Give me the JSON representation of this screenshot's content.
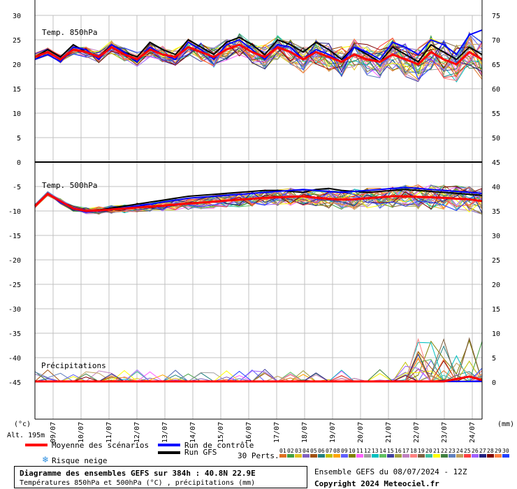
{
  "chart_data": {
    "type": "line",
    "x": [
      "09/07",
      "10/07",
      "11/07",
      "12/07",
      "13/07",
      "14/07",
      "15/07",
      "16/07",
      "17/07",
      "18/07",
      "19/07",
      "20/07",
      "21/07",
      "22/07",
      "23/07",
      "24/07"
    ],
    "left_axis": {
      "unit": "(°c)",
      "ticks": [
        "30",
        "25",
        "20",
        "15",
        "10",
        "5",
        "0",
        "-5",
        "-10",
        "-15",
        "-20",
        "-25",
        "-30",
        "-35",
        "-40",
        "-45"
      ],
      "altitude": "Alt. 195m"
    },
    "right_axis": {
      "unit": "(mm)",
      "upper_ticks": [
        "75",
        "70",
        "65",
        "60",
        "55",
        "50"
      ],
      "lower_ticks": [
        "45",
        "40",
        "35",
        "30",
        "25",
        "20",
        "15",
        "10",
        "5",
        "0"
      ]
    },
    "panels": [
      {
        "label": "Temp. 850hPa",
        "ylim": [
          0,
          30
        ]
      },
      {
        "label": "Temp. 500hPa",
        "ylim": [
          -45,
          0
        ]
      },
      {
        "label": "Précipitations",
        "ylim": [
          0,
          15
        ]
      }
    ],
    "series": [
      {
        "name": "Moyenne des scénarios",
        "color": "#ff0000",
        "t850": [
          21.5,
          22.5,
          21.0,
          23.0,
          22.5,
          21.5,
          23.5,
          22.0,
          21.0,
          23.0,
          22.0,
          21.5,
          23.5,
          22.5,
          21.5,
          23.0,
          24.0,
          22.5,
          21.5,
          23.5,
          22.5,
          21.0,
          22.5,
          21.5,
          20.5,
          22.0,
          21.0,
          20.5,
          22.0,
          21.0,
          20.0,
          22.5,
          21.0,
          20.0,
          22.5,
          21.0
        ],
        "t500": [
          -9.0,
          -6.5,
          -8.0,
          -9.5,
          -10.0,
          -9.9,
          -9.7,
          -9.5,
          -9.3,
          -9.1,
          -8.9,
          -8.7,
          -8.5,
          -8.3,
          -8.1,
          -7.9,
          -7.7,
          -7.5,
          -7.3,
          -7.2,
          -7.1,
          -7.0,
          -7.3,
          -7.5,
          -7.7,
          -7.6,
          -7.4,
          -7.2,
          -7.0,
          -7.0,
          -7.1,
          -7.2,
          -7.3,
          -7.5,
          -7.6,
          -8.0
        ],
        "precip": [
          0,
          0,
          0,
          0,
          0,
          0,
          0,
          0,
          0,
          0,
          0,
          0,
          0,
          0,
          0,
          0,
          0,
          0,
          0,
          0,
          0,
          0,
          0,
          0,
          0,
          0,
          0,
          0,
          0,
          0,
          0,
          0,
          0,
          0.5,
          1.0,
          0.3
        ]
      },
      {
        "name": "Run de contrôle",
        "color": "#0000ff",
        "t850": [
          21.0,
          22.0,
          20.5,
          23.5,
          23.0,
          21.0,
          24.0,
          22.5,
          20.5,
          23.5,
          22.0,
          21.0,
          24.5,
          23.0,
          21.0,
          24.0,
          25.0,
          23.0,
          21.0,
          24.0,
          23.5,
          21.0,
          23.0,
          22.0,
          20.5,
          23.5,
          22.5,
          21.0,
          24.5,
          23.5,
          22.0,
          25.0,
          24.0,
          22.0,
          26.0,
          27.0
        ],
        "t500": [
          -9.0,
          -6.5,
          -8.2,
          -9.6,
          -10.2,
          -10.0,
          -9.6,
          -9.4,
          -9.0,
          -8.6,
          -8.2,
          -7.8,
          -7.4,
          -7.2,
          -7.0,
          -6.8,
          -6.6,
          -6.4,
          -6.2,
          -6.0,
          -5.8,
          -5.6,
          -5.8,
          -6.0,
          -6.2,
          -6.0,
          -5.8,
          -5.6,
          -5.4,
          -5.2,
          -5.4,
          -5.6,
          -5.8,
          -6.0,
          -6.2,
          -6.4
        ],
        "precip": [
          0,
          0,
          0,
          0,
          0,
          0,
          0,
          0,
          0,
          0,
          0,
          0,
          0,
          0,
          0,
          0,
          0,
          0,
          0,
          0,
          0,
          0,
          0,
          0,
          0,
          0,
          0,
          0,
          0,
          0,
          0,
          0,
          0,
          0,
          0,
          0
        ]
      },
      {
        "name": "Run GFS",
        "color": "#000000",
        "t850": [
          21.5,
          23.0,
          21.5,
          24.0,
          22.5,
          21.5,
          24.0,
          22.5,
          21.5,
          24.5,
          23.0,
          22.0,
          25.0,
          23.5,
          22.0,
          24.5,
          25.5,
          24.0,
          22.0,
          25.0,
          24.0,
          22.5,
          24.5,
          23.0,
          21.0,
          23.5,
          22.0,
          20.5,
          23.5,
          22.0,
          20.5,
          24.0,
          22.5,
          21.0,
          23.5,
          22.0
        ],
        "t500": [
          -9.0,
          -6.5,
          -8.0,
          -9.4,
          -10.0,
          -9.8,
          -9.4,
          -9.0,
          -8.6,
          -8.2,
          -7.8,
          -7.4,
          -7.0,
          -6.8,
          -6.6,
          -6.4,
          -6.2,
          -6.0,
          -5.8,
          -5.8,
          -6.0,
          -6.2,
          -5.6,
          -5.4,
          -5.8,
          -6.0,
          -6.2,
          -6.0,
          -5.8,
          -5.6,
          -5.8,
          -6.0,
          -6.2,
          -6.4,
          -6.6,
          -6.8
        ],
        "precip": [
          0,
          0,
          0,
          0,
          0,
          0,
          0,
          0,
          0,
          0,
          0,
          0,
          0,
          0,
          0,
          0,
          0,
          0,
          0,
          0,
          0,
          0,
          0,
          0,
          0,
          0,
          0,
          0,
          0,
          0,
          0,
          0,
          0,
          0,
          0,
          0
        ]
      }
    ]
  },
  "legend": {
    "mean": "Moyenne des scénarios",
    "control": "Run de contrôle",
    "gfs": "Run GFS",
    "snow": "Risque neige",
    "perts": "30 Perts.",
    "pert_numbers": [
      "01",
      "02",
      "03",
      "04",
      "05",
      "06",
      "07",
      "08",
      "09",
      "10",
      "11",
      "12",
      "13",
      "14",
      "15",
      "16",
      "17",
      "18",
      "19",
      "20",
      "21",
      "22",
      "23",
      "24",
      "25",
      "26",
      "27",
      "28",
      "29",
      "30"
    ],
    "pert_colors": [
      "#e07020",
      "#40a040",
      "#e0c020",
      "#8060c0",
      "#a05010",
      "#208080",
      "#c0c000",
      "#ffa500",
      "#6060ff",
      "#808000",
      "#ff60ff",
      "#a0a0a0",
      "#00c0c0",
      "#60c060",
      "#4040a0",
      "#a0a040",
      "#c080c0",
      "#ff8080",
      "#806040",
      "#40c0a0",
      "#ffff00",
      "#408040",
      "#6080c0",
      "#c0a060",
      "#ff4040",
      "#a060ff",
      "#202080",
      "#800000",
      "#ff8040",
      "#2040ff"
    ]
  },
  "footer": {
    "title": "Diagramme des ensembles GEFS sur 384h : 40.8N 22.9E",
    "subtitle": "Températures 850hPa et 500hPa (°C) , précipitations (mm)",
    "run": "Ensemble GEFS du 08/07/2024 - 12Z",
    "copyright": "Copyright 2024 Meteociel.fr"
  }
}
